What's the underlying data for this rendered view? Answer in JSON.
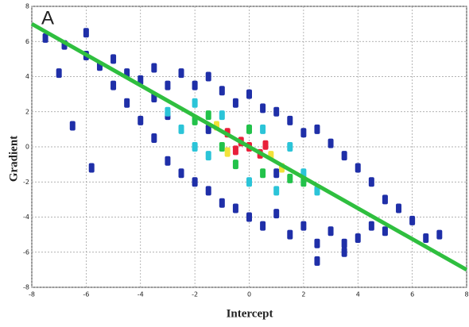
{
  "chart_data": {
    "type": "scatter",
    "panel_label": "A",
    "xlabel": "Intercept",
    "ylabel": "Gradient",
    "xlim": [
      -8,
      8
    ],
    "ylim": [
      -8,
      8
    ],
    "xticks": [
      -8,
      -6,
      -4,
      -2,
      0,
      2,
      4,
      6,
      8
    ],
    "yticks": [
      -8,
      -6,
      -4,
      -2,
      0,
      2,
      4,
      6,
      8
    ],
    "grid": true,
    "series": [
      {
        "color": "#1f2fa8",
        "x": [
          -7.5,
          -6.8,
          -6,
          -6,
          -5.5,
          -5,
          -5,
          -4.5,
          -4.5,
          -4,
          -4,
          -3.5,
          -3.5,
          -3.5,
          -3,
          -3,
          -3,
          -2.5,
          -2.5,
          -2,
          -2,
          -1.5,
          -1.5,
          -1,
          -1,
          -0.5,
          -0.5,
          0,
          0,
          0.5,
          0.5,
          1,
          1,
          1.5,
          1.5,
          2,
          2,
          2.5,
          2.5,
          3,
          3,
          3.5,
          3.5,
          4,
          4,
          4.5,
          4.5,
          5,
          5,
          5.5,
          6,
          6.5,
          7,
          -6.5,
          -5.8,
          -7,
          2.5,
          3.5,
          -1.5,
          1
        ],
        "y": [
          6.2,
          5.8,
          5.2,
          6.5,
          4.6,
          3.5,
          5,
          4.2,
          2.5,
          3.8,
          1.5,
          4.5,
          2.8,
          0.5,
          3.5,
          1.8,
          -0.8,
          4.2,
          -1.5,
          3.5,
          -2,
          4,
          -2.5,
          3.2,
          -3.2,
          2.5,
          -3.5,
          3,
          -4,
          2.2,
          -4.5,
          2,
          -3.8,
          1.5,
          -5,
          0.8,
          -4.5,
          1,
          -5.5,
          0.2,
          -4.8,
          -0.5,
          -5.5,
          -1.2,
          -5.2,
          -2,
          -4.5,
          -3,
          -4.8,
          -3.5,
          -4.2,
          -5.2,
          -5,
          1.2,
          -1.2,
          4.2,
          -6.5,
          -6,
          1,
          -1.5
        ]
      },
      {
        "color": "#2bc4d8",
        "x": [
          -3,
          -2.5,
          -2,
          -1.5,
          -1,
          0,
          0.5,
          1,
          1.5,
          2,
          2.5,
          -2
        ],
        "y": [
          2,
          1,
          2.5,
          -0.5,
          1.8,
          -2,
          1,
          -2.5,
          0,
          -1.5,
          -2.5,
          0
        ]
      },
      {
        "color": "#22c24a",
        "x": [
          -2,
          -1.5,
          -1,
          0,
          0.5,
          1.5,
          2,
          -0.5
        ],
        "y": [
          1.5,
          1.8,
          0,
          1,
          -1.5,
          -1.8,
          -2,
          -1
        ]
      },
      {
        "color": "#f2e23a",
        "x": [
          -1.2,
          0.8,
          1.2,
          -0.8
        ],
        "y": [
          1.2,
          -0.5,
          -1.2,
          -0.3
        ]
      },
      {
        "color": "#e8203a",
        "x": [
          -0.8,
          -0.3,
          0,
          0.4,
          0.6,
          -0.5
        ],
        "y": [
          0.8,
          0.3,
          0,
          -0.4,
          0.1,
          -0.2
        ]
      }
    ],
    "line": {
      "color": "#2fbf3f",
      "x": [
        -8,
        8
      ],
      "y": [
        7,
        -7
      ]
    }
  }
}
